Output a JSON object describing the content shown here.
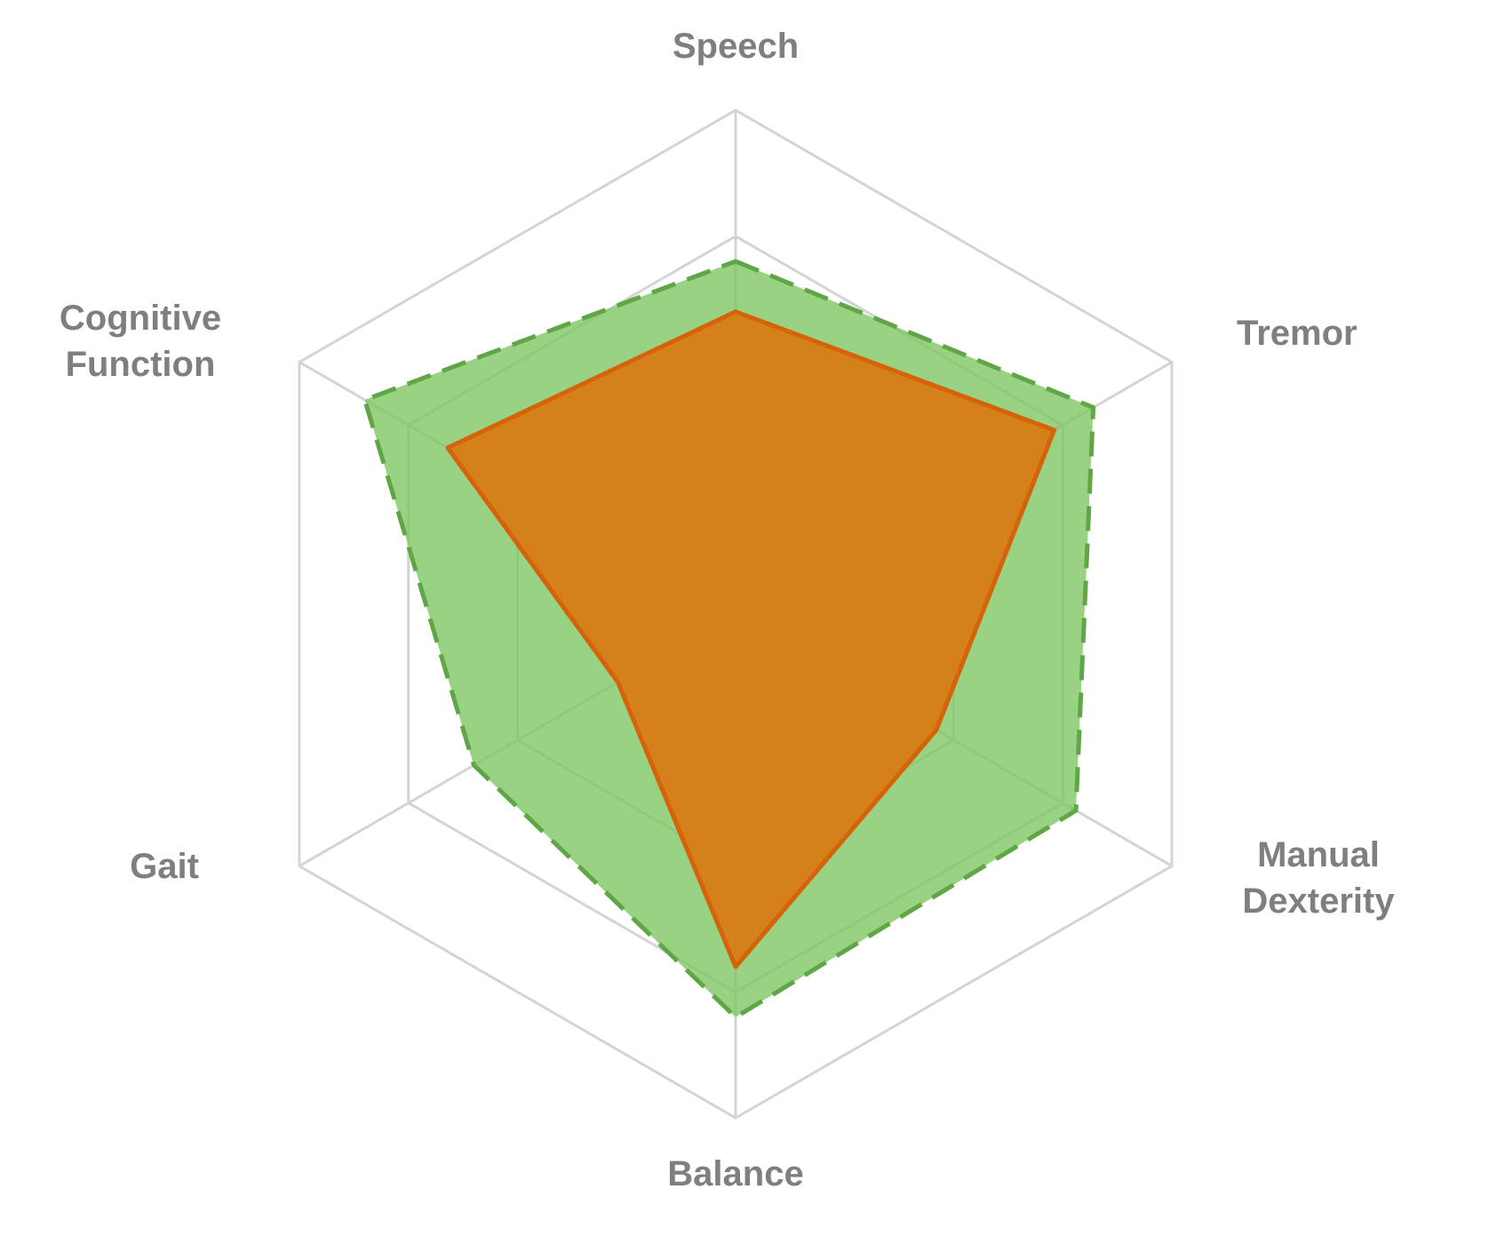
{
  "chart_data": {
    "type": "radar",
    "axes": [
      "Speech",
      "Tremor",
      "Manual Dexterity",
      "Balance",
      "Gait",
      "Cognitive Function"
    ],
    "axis_label_lines": [
      [
        "Speech"
      ],
      [
        "Tremor"
      ],
      [
        "Manual",
        "Dexterity"
      ],
      [
        "Balance"
      ],
      [
        "Gait"
      ],
      [
        "Cognitive",
        "Function"
      ]
    ],
    "rmax": 100,
    "grid_levels": [
      25,
      50,
      75,
      100
    ],
    "series": [
      {
        "values": [
          70,
          82,
          78,
          80,
          60,
          85
        ],
        "fill": "#7cc55f",
        "fill_opacity": 0.78,
        "stroke": "#5fa646",
        "dashed": true
      },
      {
        "values": [
          60,
          73,
          46,
          70,
          27,
          66
        ],
        "fill": "#d97912",
        "fill_opacity": 0.92,
        "stroke": "#d6620a",
        "dashed": false
      }
    ],
    "colors": {
      "grid": "#d4d4d4",
      "label": "#7f7f7f"
    }
  }
}
